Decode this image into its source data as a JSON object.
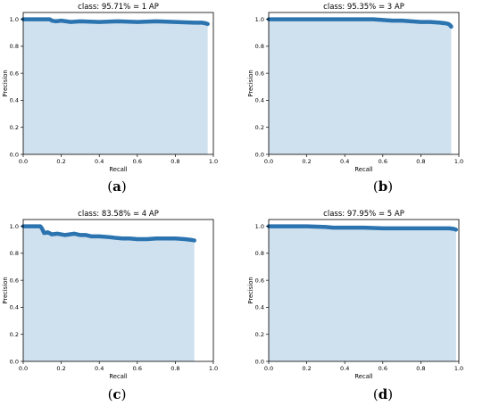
{
  "figure": {
    "captions": [
      "(a)",
      "(b)",
      "(c)",
      "(d)"
    ]
  },
  "chart_data": [
    {
      "type": "area",
      "title": "class: 95.71% = 1 AP",
      "xlabel": "Recall",
      "ylabel": "Precision",
      "xlim": [
        0.0,
        1.0
      ],
      "ylim": [
        0.0,
        1.05
      ],
      "xticks": [
        "0.0",
        "0.2",
        "0.4",
        "0.6",
        "0.8",
        "1.0"
      ],
      "yticks": [
        "0.0",
        "0.2",
        "0.4",
        "0.6",
        "0.8",
        "1.0"
      ],
      "fill_color": "#cfe0ee",
      "line_color": "#2b74b0",
      "x": [
        0.0,
        0.14,
        0.15,
        0.17,
        0.2,
        0.25,
        0.3,
        0.4,
        0.5,
        0.6,
        0.7,
        0.8,
        0.9,
        0.94,
        0.96,
        0.97
      ],
      "y": [
        1.0,
        1.0,
        0.99,
        0.985,
        0.99,
        0.98,
        0.985,
        0.98,
        0.985,
        0.98,
        0.985,
        0.98,
        0.975,
        0.975,
        0.97,
        0.965
      ]
    },
    {
      "type": "area",
      "title": "class: 95.35% = 3 AP",
      "xlabel": "Recall",
      "ylabel": "Precision",
      "xlim": [
        0.0,
        1.0
      ],
      "ylim": [
        0.0,
        1.05
      ],
      "xticks": [
        "0.0",
        "0.2",
        "0.4",
        "0.6",
        "0.8",
        "1.0"
      ],
      "yticks": [
        "0.0",
        "0.2",
        "0.4",
        "0.6",
        "0.8",
        "1.0"
      ],
      "fill_color": "#cfe0ee",
      "line_color": "#2b74b0",
      "x": [
        0.0,
        0.2,
        0.4,
        0.55,
        0.6,
        0.65,
        0.7,
        0.75,
        0.8,
        0.85,
        0.9,
        0.93,
        0.945,
        0.955,
        0.96
      ],
      "y": [
        1.0,
        1.0,
        1.0,
        1.0,
        0.995,
        0.99,
        0.99,
        0.985,
        0.98,
        0.98,
        0.975,
        0.97,
        0.965,
        0.955,
        0.945
      ]
    },
    {
      "type": "area",
      "title": "class: 83.58% = 4 AP",
      "xlabel": "Recall",
      "ylabel": "Precision",
      "xlim": [
        0.0,
        1.0
      ],
      "ylim": [
        0.0,
        1.05
      ],
      "xticks": [
        "0.0",
        "0.2",
        "0.4",
        "0.6",
        "0.8",
        "1.0"
      ],
      "yticks": [
        "0.0",
        "0.2",
        "0.4",
        "0.6",
        "0.8",
        "1.0"
      ],
      "fill_color": "#cfe0ee",
      "line_color": "#2b74b0",
      "x": [
        0.0,
        0.09,
        0.1,
        0.11,
        0.13,
        0.15,
        0.18,
        0.22,
        0.27,
        0.3,
        0.33,
        0.36,
        0.4,
        0.45,
        0.48,
        0.52,
        0.56,
        0.6,
        0.65,
        0.7,
        0.75,
        0.8,
        0.85,
        0.88,
        0.9
      ],
      "y": [
        1.0,
        1.0,
        0.98,
        0.95,
        0.955,
        0.94,
        0.945,
        0.935,
        0.945,
        0.935,
        0.935,
        0.925,
        0.925,
        0.92,
        0.915,
        0.91,
        0.91,
        0.905,
        0.905,
        0.91,
        0.91,
        0.91,
        0.905,
        0.9,
        0.895
      ]
    },
    {
      "type": "area",
      "title": "class: 97.95% = 5 AP",
      "xlabel": "Recall",
      "ylabel": "Precision",
      "xlim": [
        0.0,
        1.0
      ],
      "ylim": [
        0.0,
        1.05
      ],
      "xticks": [
        "0.0",
        "0.2",
        "0.4",
        "0.6",
        "0.8",
        "1.0"
      ],
      "yticks": [
        "0.0",
        "0.2",
        "0.4",
        "0.6",
        "0.8",
        "1.0"
      ],
      "fill_color": "#cfe0ee",
      "line_color": "#2b74b0",
      "x": [
        0.0,
        0.1,
        0.2,
        0.3,
        0.34,
        0.4,
        0.5,
        0.6,
        0.65,
        0.7,
        0.8,
        0.9,
        0.95,
        0.975,
        0.985
      ],
      "y": [
        1.0,
        1.0,
        1.0,
        0.995,
        0.99,
        0.99,
        0.99,
        0.985,
        0.985,
        0.985,
        0.985,
        0.985,
        0.985,
        0.98,
        0.975
      ]
    }
  ]
}
